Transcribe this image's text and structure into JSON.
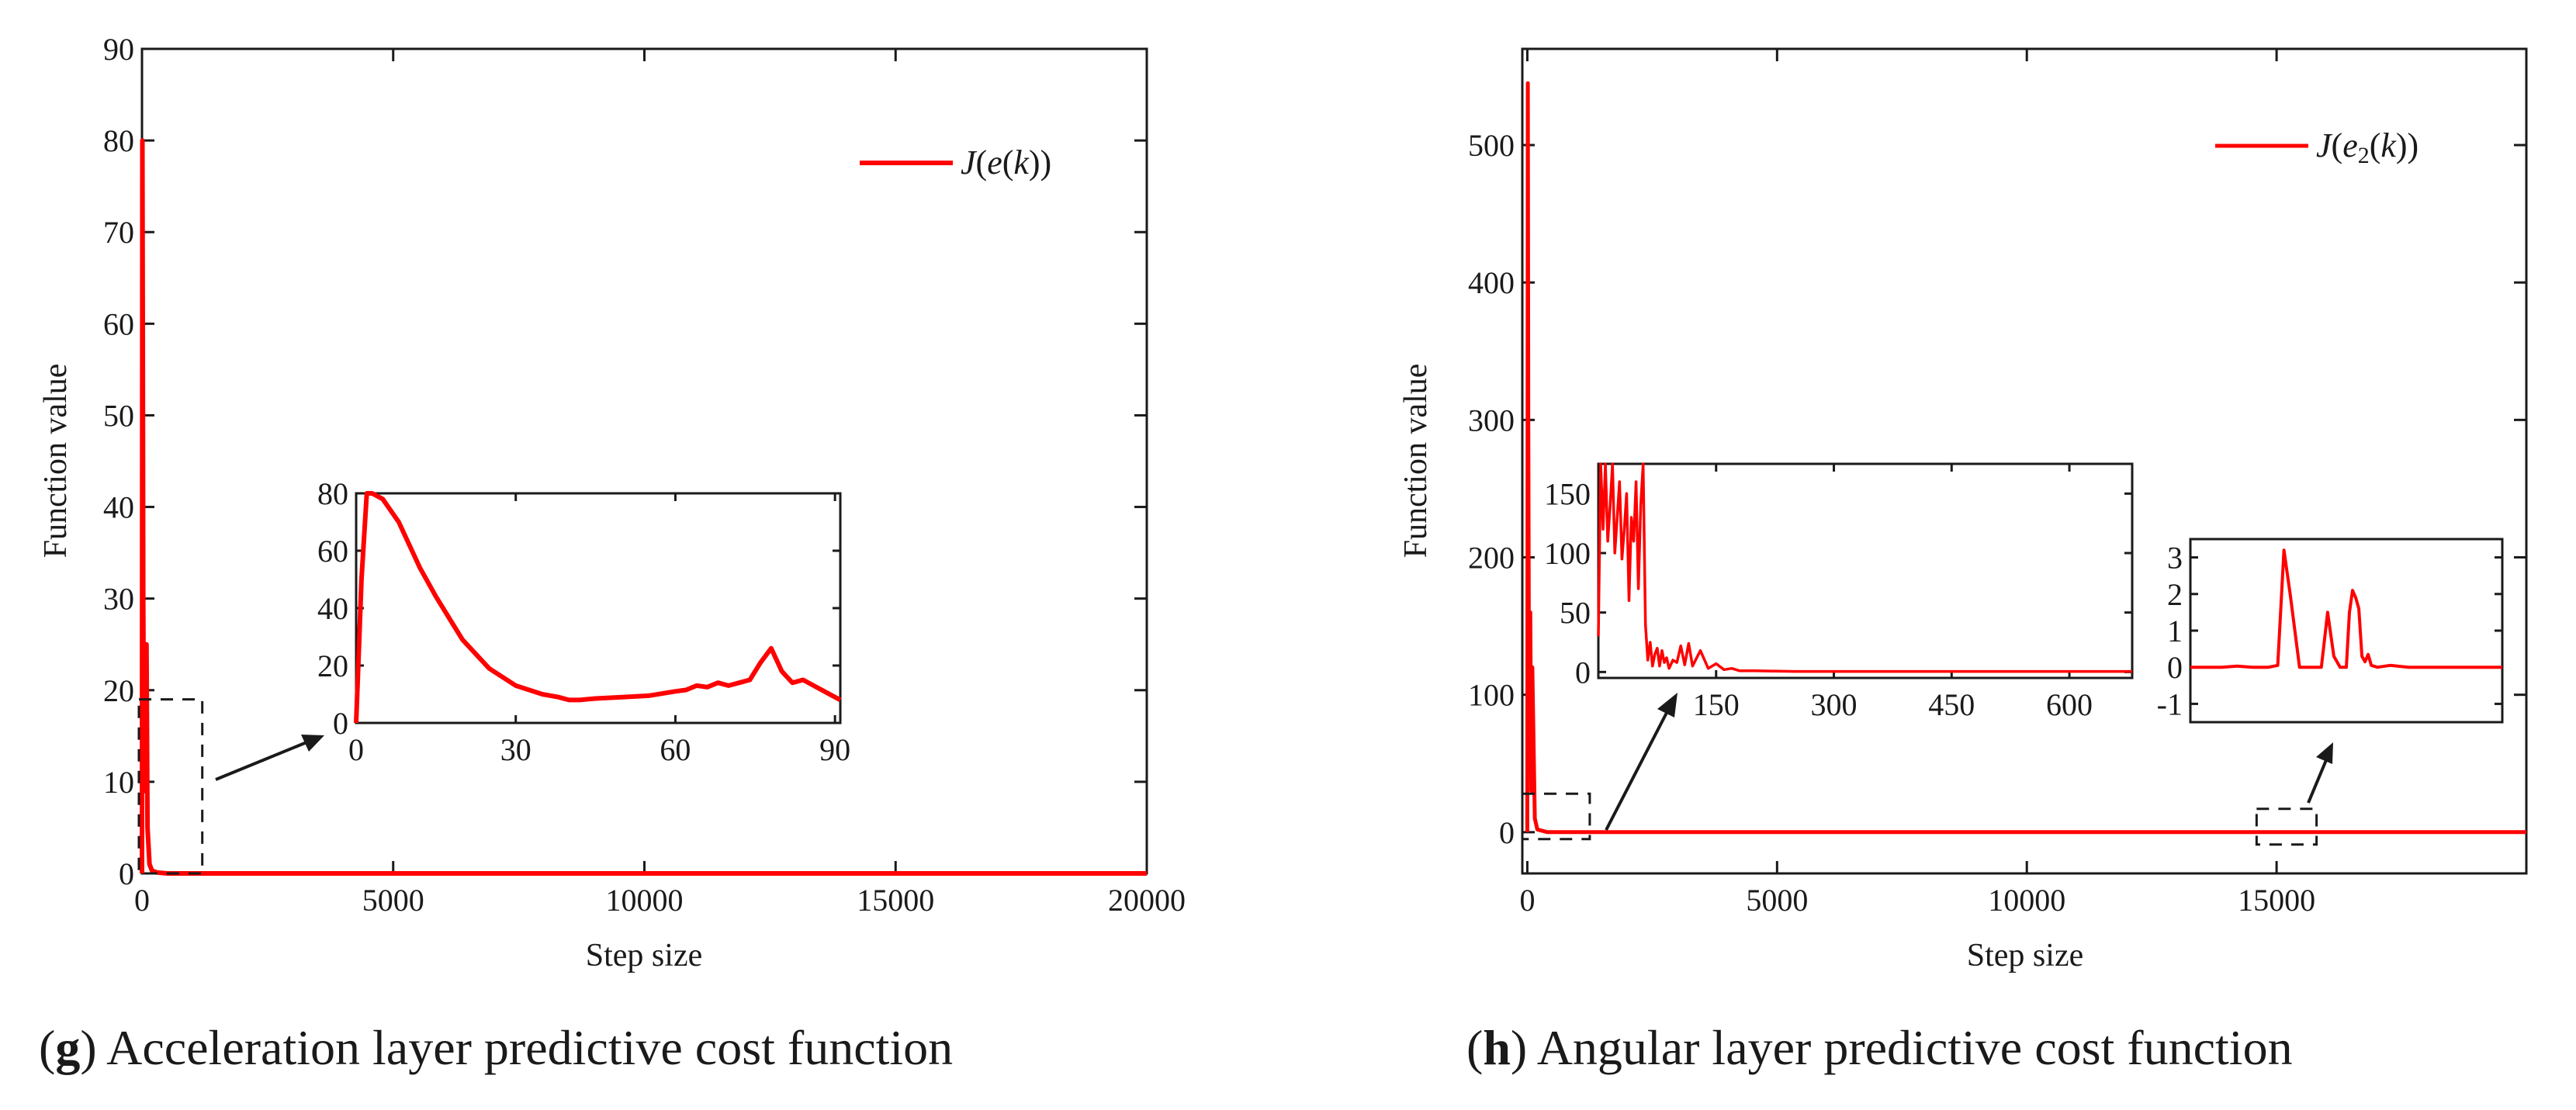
{
  "captions": {
    "g": {
      "letter": "g",
      "text": " Acceleration layer predictive cost function"
    },
    "h": {
      "letter": "h",
      "text": " Angular layer predictive cost function"
    }
  },
  "colors": {
    "series": "#ff0000",
    "axis": "#1a1a1a",
    "box": "#1a1a1a"
  },
  "chart_data": [
    {
      "id": "g",
      "type": "line",
      "title": "",
      "xlabel": "Step size",
      "ylabel": "Function value",
      "xlim": [
        0,
        20000
      ],
      "ylim": [
        0,
        90
      ],
      "xticks": [
        0,
        5000,
        10000,
        15000,
        20000
      ],
      "xtick_labels": [
        "0",
        "5000",
        "10000",
        "15000",
        "20000"
      ],
      "yticks": [
        0,
        10,
        20,
        30,
        40,
        50,
        60,
        70,
        80,
        90
      ],
      "ytick_labels": [
        "0",
        "10",
        "20",
        "30",
        "40",
        "50",
        "60",
        "70",
        "80",
        "90"
      ],
      "legend": {
        "label": "J(e(k))",
        "position": "top-right"
      },
      "series": [
        {
          "name": "J(e(k))",
          "x": [
            0,
            8,
            15,
            25,
            40,
            60,
            75,
            90,
            110,
            150,
            200,
            300,
            500,
            1000,
            2000,
            5000,
            10000,
            15000,
            20000
          ],
          "y": [
            0,
            80,
            60,
            30,
            12,
            9,
            20,
            25,
            5,
            1,
            0.3,
            0.1,
            0,
            0,
            0,
            0,
            0,
            0,
            0
          ]
        }
      ],
      "zoom_box": {
        "x_range": [
          0,
          1200
        ],
        "y_range": [
          0,
          19
        ]
      },
      "inset": {
        "xlim": [
          0,
          91
        ],
        "ylim": [
          0,
          80
        ],
        "xticks": [
          0,
          30,
          60,
          90
        ],
        "xtick_labels": [
          "0",
          "30",
          "60",
          "90"
        ],
        "yticks": [
          0,
          20,
          40,
          60,
          80
        ],
        "ytick_labels": [
          "0",
          "20",
          "40",
          "60",
          "80"
        ],
        "x": [
          0,
          1,
          2,
          3,
          5,
          8,
          10,
          12,
          15,
          18,
          20,
          25,
          30,
          35,
          38,
          40,
          42,
          45,
          50,
          55,
          60,
          62,
          64,
          66,
          68,
          70,
          72,
          74,
          76,
          78,
          80,
          82,
          84,
          86,
          88,
          90,
          91
        ],
        "y": [
          0,
          50,
          80,
          80,
          78,
          70,
          62,
          54,
          44,
          35,
          29,
          19,
          13,
          10,
          9,
          8,
          8,
          8.5,
          9,
          9.5,
          11,
          11.5,
          13,
          12.5,
          14,
          13,
          14,
          15,
          21,
          26,
          18,
          14,
          15,
          13,
          11,
          9,
          8
        ]
      }
    },
    {
      "id": "h",
      "type": "line",
      "title": "",
      "xlabel": "Step size",
      "ylabel": "Function value",
      "xlim": [
        -100,
        20000
      ],
      "ylim": [
        -30,
        570
      ],
      "xticks": [
        0,
        5000,
        10000,
        15000
      ],
      "xtick_labels": [
        "0",
        "5000",
        "10000",
        "15000"
      ],
      "yticks": [
        0,
        100,
        200,
        300,
        400,
        500
      ],
      "ytick_labels": [
        "0",
        "100",
        "200",
        "300",
        "400",
        "500"
      ],
      "legend": {
        "label": "J(e2(k))",
        "position": "top-right"
      },
      "series": [
        {
          "name": "J(e2(k))",
          "x": [
            0,
            10,
            20,
            30,
            45,
            60,
            80,
            100,
            150,
            200,
            400,
            1000,
            5000,
            10000,
            15000,
            20000
          ],
          "y": [
            0,
            545,
            300,
            150,
            80,
            160,
            30,
            120,
            10,
            2,
            0,
            0,
            0,
            0,
            0,
            0
          ]
        }
      ],
      "zoom_boxes": [
        {
          "x_range": [
            -100,
            1250
          ],
          "y_range": [
            -5,
            28
          ]
        },
        {
          "x_range": [
            14600,
            15800
          ],
          "y_range": [
            -9,
            17
          ]
        }
      ],
      "insets": [
        {
          "xlim": [
            0,
            680
          ],
          "ylim": [
            -5,
            175
          ],
          "xticks": [
            150,
            300,
            450,
            600
          ],
          "xtick_labels": [
            "150",
            "300",
            "450",
            "600"
          ],
          "yticks": [
            0,
            50,
            100,
            150
          ],
          "ytick_labels": [
            "0",
            "50",
            "100",
            "150"
          ],
          "x": [
            0,
            3,
            6,
            9,
            12,
            15,
            18,
            21,
            24,
            27,
            30,
            33,
            36,
            39,
            42,
            45,
            48,
            51,
            54,
            57,
            60,
            63,
            66,
            69,
            72,
            75,
            78,
            81,
            84,
            87,
            90,
            95,
            100,
            105,
            110,
            115,
            120,
            130,
            140,
            150,
            160,
            170,
            180,
            200,
            250,
            300,
            680
          ],
          "y": [
            30,
            175,
            120,
            175,
            110,
            140,
            175,
            100,
            130,
            160,
            95,
            120,
            150,
            60,
            130,
            110,
            160,
            70,
            140,
            175,
            40,
            10,
            25,
            5,
            15,
            20,
            5,
            18,
            8,
            12,
            3,
            10,
            8,
            22,
            6,
            24,
            5,
            18,
            3,
            7,
            2,
            3,
            1,
            1,
            0.5,
            0.5,
            0.5
          ]
        },
        {
          "xlim": [
            0,
            100
          ],
          "ylim": [
            -1.5,
            3.5
          ],
          "xticks": [],
          "xtick_labels": [],
          "yticks": [
            -1,
            0,
            1,
            2,
            3
          ],
          "ytick_labels": [
            "-1",
            "0",
            "1",
            "2",
            "3"
          ],
          "x": [
            0,
            10,
            15,
            20,
            25,
            28,
            30,
            32,
            35,
            40,
            42,
            44,
            46,
            48,
            50,
            51,
            52,
            53,
            54,
            55,
            56,
            57,
            58,
            60,
            64,
            70,
            80,
            90,
            100
          ],
          "y": [
            0,
            0,
            0.03,
            0,
            0,
            0.05,
            3.2,
            2,
            0,
            0,
            0,
            1.5,
            0.3,
            0,
            0,
            1.5,
            2.1,
            1.9,
            1.6,
            0.3,
            0.15,
            0.35,
            0.05,
            0,
            0.05,
            0,
            0,
            0,
            0
          ]
        }
      ]
    }
  ]
}
